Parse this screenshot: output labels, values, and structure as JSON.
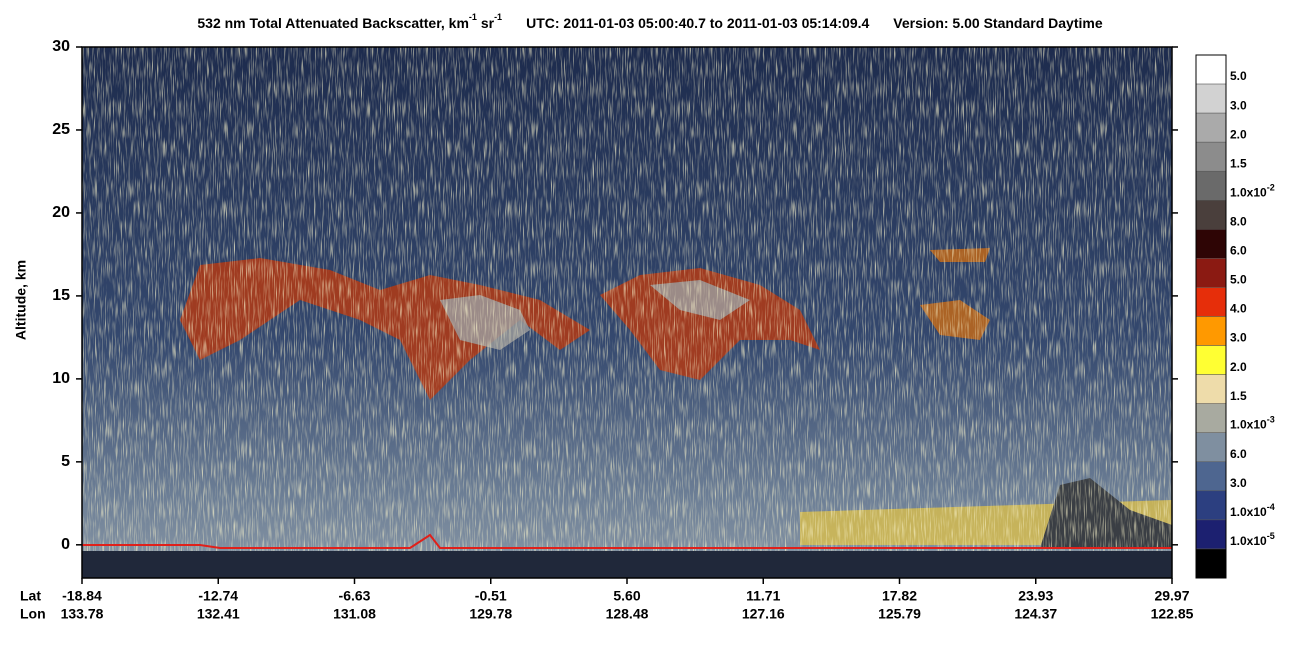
{
  "chart_data": {
    "type": "heatmap",
    "title": {
      "quantity": "532 nm Total Attenuated Backscatter, km",
      "unit_exp1": "-1",
      "unit2": " sr",
      "unit_exp2": "-1",
      "utc": "UTC:  2011-01-03 05:00:40.7  to  2011-01-03 05:14:09.4",
      "version": "Version: 5.00  Standard  Daytime"
    },
    "y_label": "Altitude, km",
    "ylim": [
      -2,
      30
    ],
    "yticks": [
      0,
      5,
      10,
      15,
      20,
      25,
      30
    ],
    "x_row_labels": [
      "Lat",
      "Lon"
    ],
    "lat": [
      "-18.84",
      "-12.74",
      "-6.63",
      "-0.51",
      "5.60",
      "11.71",
      "17.82",
      "23.93",
      "29.97"
    ],
    "lon": [
      "133.78",
      "132.41",
      "131.08",
      "129.78",
      "128.48",
      "127.16",
      "125.79",
      "124.37",
      "122.85"
    ],
    "colorbar": {
      "colors": [
        "#ffffff",
        "#d2d2d2",
        "#aaaaaa",
        "#8c8c8c",
        "#6a6a6a",
        "#4a3f3c",
        "#2e0505",
        "#8b1a12",
        "#e62e0a",
        "#ff9900",
        "#ffff33",
        "#eedcaa",
        "#a8aaa0",
        "#7f8fa0",
        "#4e6690",
        "#2c3f80",
        "#1c2070",
        "#000000"
      ],
      "labels": [
        "5.0",
        "3.0",
        "2.0",
        "1.5",
        {
          "text": "1.0x10",
          "sup": "-2"
        },
        "8.0",
        "6.0",
        "5.0",
        "4.0",
        "3.0",
        "2.0",
        "1.5",
        {
          "text": "1.0x10",
          "sup": "-3"
        },
        "6.0",
        "3.0",
        {
          "text": "1.0x10",
          "sup": "-4"
        },
        {
          "text": "1.0x10",
          "sup": "-5"
        }
      ]
    }
  }
}
